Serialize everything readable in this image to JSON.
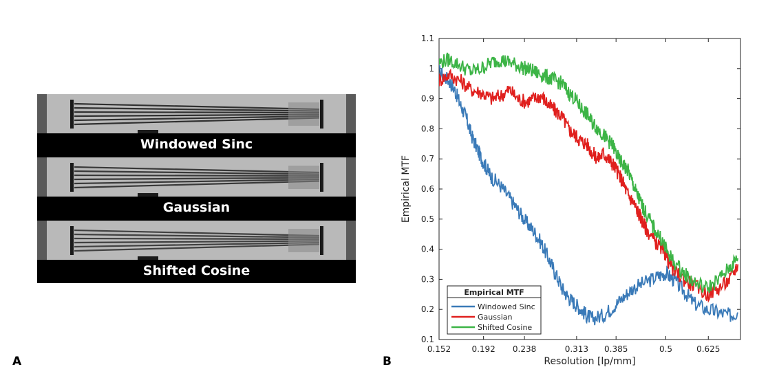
{
  "panel_labels": {
    "a": "A",
    "b": "B"
  },
  "phantom": {
    "strips": [
      {
        "caption": "Windowed Sinc"
      },
      {
        "caption": "Gaussian"
      },
      {
        "caption": "Shifted Cosine"
      }
    ]
  },
  "chart_data": {
    "type": "line",
    "title": "",
    "xlabel": "Resolution [lp/mm]",
    "ylabel": "Empirical MTF",
    "xscale": "log",
    "xlim": [
      0.152,
      0.74
    ],
    "ylim": [
      0.1,
      1.1
    ],
    "xticks": [
      0.152,
      0.192,
      0.238,
      0.313,
      0.385,
      0.5,
      0.625
    ],
    "xtick_labels": [
      "0.152",
      "0.192",
      "0.238",
      "0.313",
      "0.385",
      "0.5",
      "0.625"
    ],
    "yticks": [
      0.1,
      0.2,
      0.3,
      0.4,
      0.5,
      0.6,
      0.7,
      0.8,
      0.9,
      1,
      1.1
    ],
    "ytick_labels": [
      "0.1",
      "0.2",
      "0.3",
      "0.4",
      "0.5",
      "0.6",
      "0.7",
      "0.8",
      "0.9",
      "1",
      "1.1"
    ],
    "legend": {
      "title": "Empirical MTF",
      "position": "bottom-left"
    },
    "series": [
      {
        "name": "Windowed Sinc",
        "color": "#3a7ab8",
        "x": [
          0.152,
          0.16,
          0.165,
          0.17,
          0.175,
          0.18,
          0.185,
          0.19,
          0.195,
          0.2,
          0.21,
          0.22,
          0.23,
          0.24,
          0.25,
          0.26,
          0.27,
          0.28,
          0.29,
          0.3,
          0.31,
          0.32,
          0.33,
          0.34,
          0.36,
          0.38,
          0.4,
          0.42,
          0.45,
          0.48,
          0.5,
          0.52,
          0.55,
          0.58,
          0.62,
          0.66,
          0.7,
          0.73
        ],
        "values": [
          0.99,
          0.96,
          0.93,
          0.88,
          0.84,
          0.78,
          0.74,
          0.7,
          0.67,
          0.64,
          0.61,
          0.57,
          0.53,
          0.49,
          0.46,
          0.42,
          0.37,
          0.32,
          0.27,
          0.24,
          0.22,
          0.2,
          0.18,
          0.17,
          0.18,
          0.21,
          0.24,
          0.27,
          0.29,
          0.31,
          0.32,
          0.3,
          0.26,
          0.22,
          0.2,
          0.19,
          0.18,
          0.19
        ]
      },
      {
        "name": "Gaussian",
        "color": "#e0201e",
        "x": [
          0.152,
          0.16,
          0.17,
          0.18,
          0.19,
          0.2,
          0.21,
          0.22,
          0.23,
          0.24,
          0.25,
          0.26,
          0.27,
          0.28,
          0.29,
          0.3,
          0.31,
          0.32,
          0.33,
          0.34,
          0.35,
          0.36,
          0.37,
          0.38,
          0.39,
          0.4,
          0.41,
          0.42,
          0.43,
          0.44,
          0.45,
          0.47,
          0.49,
          0.5,
          0.52,
          0.55,
          0.58,
          0.62,
          0.66,
          0.7,
          0.73
        ],
        "values": [
          0.96,
          0.98,
          0.96,
          0.93,
          0.92,
          0.9,
          0.91,
          0.93,
          0.9,
          0.89,
          0.9,
          0.91,
          0.88,
          0.86,
          0.84,
          0.8,
          0.78,
          0.76,
          0.75,
          0.72,
          0.7,
          0.72,
          0.7,
          0.68,
          0.65,
          0.62,
          0.58,
          0.56,
          0.53,
          0.5,
          0.47,
          0.43,
          0.4,
          0.38,
          0.33,
          0.3,
          0.28,
          0.25,
          0.27,
          0.3,
          0.35
        ]
      },
      {
        "name": "Shifted Cosine",
        "color": "#3cb446",
        "x": [
          0.152,
          0.16,
          0.17,
          0.18,
          0.19,
          0.2,
          0.21,
          0.22,
          0.23,
          0.24,
          0.25,
          0.26,
          0.27,
          0.28,
          0.29,
          0.3,
          0.31,
          0.32,
          0.33,
          0.34,
          0.35,
          0.36,
          0.37,
          0.38,
          0.39,
          0.4,
          0.41,
          0.42,
          0.43,
          0.44,
          0.45,
          0.47,
          0.49,
          0.5,
          0.52,
          0.55,
          0.58,
          0.62,
          0.66,
          0.7,
          0.73
        ],
        "values": [
          1.02,
          1.03,
          1.01,
          0.99,
          1.0,
          1.02,
          1.03,
          1.02,
          1.01,
          1.0,
          0.99,
          0.98,
          0.97,
          0.96,
          0.95,
          0.92,
          0.9,
          0.87,
          0.85,
          0.82,
          0.8,
          0.78,
          0.76,
          0.74,
          0.7,
          0.68,
          0.66,
          0.62,
          0.58,
          0.55,
          0.52,
          0.47,
          0.43,
          0.4,
          0.36,
          0.32,
          0.29,
          0.27,
          0.3,
          0.34,
          0.37
        ]
      }
    ]
  }
}
